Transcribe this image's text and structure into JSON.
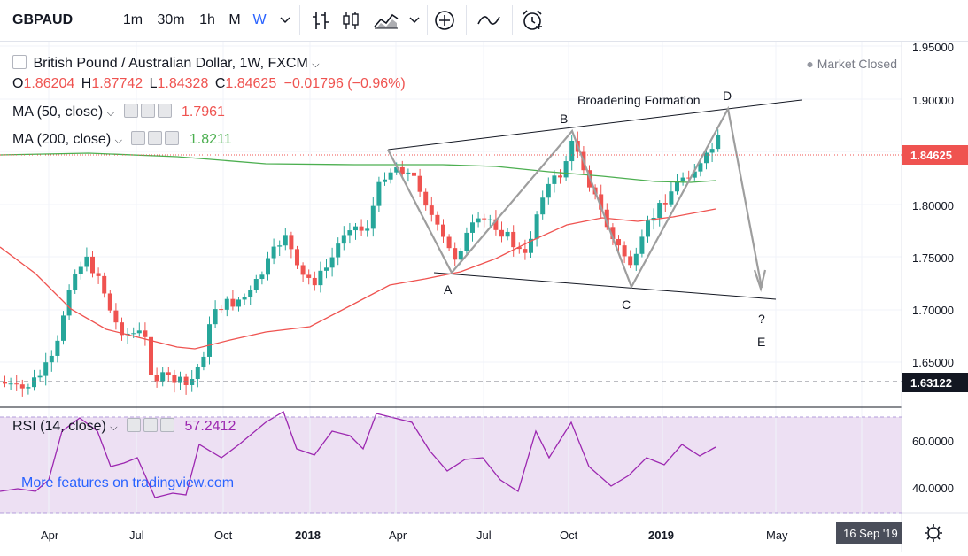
{
  "toolbar": {
    "symbol": "GBPAUD",
    "timeframes": [
      "1m",
      "30m",
      "1h",
      "M",
      "W"
    ],
    "active_timeframe": "W"
  },
  "legend": {
    "title": "British Pound / Australian Dollar, 1W, FXCM",
    "ohlc": {
      "o_label": "O",
      "o": "1.86204",
      "h_label": "H",
      "h": "1.87742",
      "l_label": "L",
      "l": "1.84328",
      "c_label": "C",
      "c": "1.84625",
      "change": "−0.01796 (−0.96%)"
    },
    "ma50": {
      "label": "MA (50, close)",
      "value": "1.7961",
      "color": "#ef5350"
    },
    "ma200": {
      "label": "MA (200, close)",
      "value": "1.8211",
      "color": "#4caf50"
    },
    "rsi": {
      "label": "RSI (14, close)",
      "value": "57.2412",
      "color": "#9c27b0"
    }
  },
  "market_status": "Market Closed",
  "watermark": "More features on tradingview.com",
  "annotations": {
    "pattern": "Broadening Formation",
    "A": "A",
    "B": "B",
    "C": "C",
    "D": "D",
    "E": "E",
    "question": "?"
  },
  "price_axis": {
    "ticks": [
      "1.95000",
      "1.90000",
      "1.85000",
      "1.80000",
      "1.75000",
      "1.70000",
      "1.65000"
    ],
    "current_price": "1.84625",
    "level_price": "1.63122"
  },
  "rsi_axis": {
    "ticks": [
      "60.0000",
      "40.0000"
    ]
  },
  "time_axis": {
    "ticks": [
      "Apr",
      "Jul",
      "Oct",
      "2018",
      "Apr",
      "Jul",
      "Oct",
      "2019",
      "May"
    ],
    "date_label": "16 Sep '19"
  },
  "colors": {
    "up": "#26a69a",
    "down": "#ef5350",
    "accent": "#2962ff",
    "rsi_band": "#ede0f3"
  }
}
